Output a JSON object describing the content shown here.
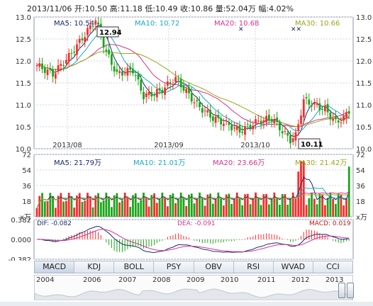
{
  "header": {
    "date": "2013/11/06",
    "open": "开:10.50",
    "high": "高:11.18",
    "low": "低:10.49",
    "close": "收:10.86",
    "volume": "量:52.04万",
    "change": "幅:4.02%"
  },
  "price_panel": {
    "y_ticks": [
      "13.0",
      "12.5",
      "12.0",
      "11.5",
      "11.0",
      "10.5",
      "10.0"
    ],
    "x_ticks": [
      "2013/08",
      "2013/09",
      "2013/10"
    ],
    "ma_labels": [
      "MA5: 10.54",
      "MA10: 10.72",
      "MA20: 10.68",
      "MA30: 10.66"
    ],
    "max_label": "12.94",
    "min_label": "10.11"
  },
  "volume_panel": {
    "y_ticks": [
      "72",
      "54",
      "36",
      "18",
      "x万"
    ],
    "ma_labels": [
      "MA5: 21.79万",
      "MA10: 21.01万",
      "MA20: 23.66万",
      "MA30: 21.42万"
    ]
  },
  "macd_panel": {
    "y_ticks": [
      "0.382",
      "0.000",
      "-0.382"
    ],
    "labels": [
      "DIF: -0.082",
      "DEA: -0.091",
      "MACD: 0.019"
    ]
  },
  "tabs": [
    "MACD",
    "KDJ",
    "BOLL",
    "PSY",
    "OBV",
    "RSI",
    "WVAD",
    "CCI"
  ],
  "timeline_years": [
    "2004",
    "2006",
    "2007",
    "2008",
    "2009",
    "2010",
    "2011",
    "2012",
    "2013"
  ],
  "colors": {
    "up": "#ff2a2a",
    "down": "#1aa61a",
    "ma5": "#1a2a6e",
    "ma10": "#19a8c6",
    "ma20": "#d6338f",
    "ma30": "#9aa61a"
  },
  "chart_data": {
    "type": "candlestick",
    "title": "",
    "x": [
      "2013/08",
      "2013/09",
      "2013/10"
    ],
    "ylim": [
      10.0,
      13.0
    ],
    "annotations": {
      "high": 12.94,
      "low": 10.11
    },
    "last_bar": {
      "open": 10.5,
      "high": 11.18,
      "low": 10.49,
      "close": 10.86,
      "volume_wan": 52.04,
      "change_pct": 4.02
    },
    "moving_averages": {
      "MA5": 10.54,
      "MA10": 10.72,
      "MA20": 10.68,
      "MA30": 10.66
    },
    "volume_ylim": [
      0,
      72
    ],
    "volume_moving_averages_wan": {
      "MA5": 21.79,
      "MA10": 21.01,
      "MA20": 23.66,
      "MA30": 21.42
    },
    "macd": {
      "DIF": -0.082,
      "DEA": -0.091,
      "MACD": 0.019,
      "ylim": [
        -0.382,
        0.382
      ]
    }
  }
}
